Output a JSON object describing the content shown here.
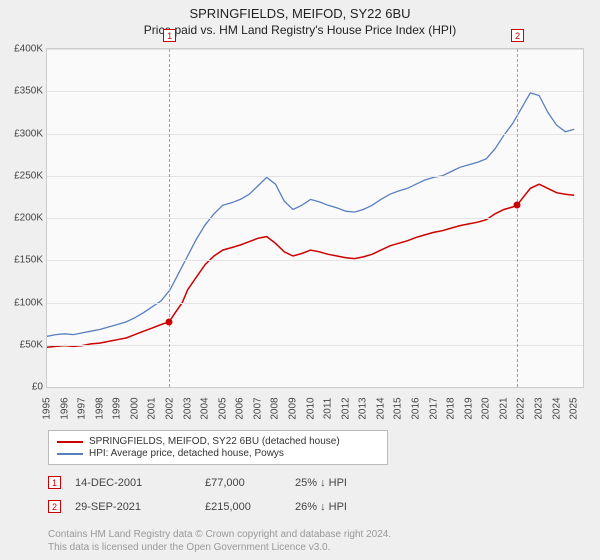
{
  "title": "SPRINGFIELDS, MEIFOD, SY22 6BU",
  "subtitle": "Price paid vs. HM Land Registry's House Price Index (HPI)",
  "chart": {
    "type": "line",
    "background_color": "#fafafa",
    "grid_color": "#e4e4e4",
    "axis_color": "#cccccc",
    "y": {
      "min": 0,
      "max": 400000,
      "step": 50000,
      "labels": [
        "£0",
        "£50K",
        "£100K",
        "£150K",
        "£200K",
        "£250K",
        "£300K",
        "£350K",
        "£400K"
      ]
    },
    "x": {
      "min": 1995,
      "max": 2025.5,
      "labels": [
        "1995",
        "1996",
        "1997",
        "1998",
        "1999",
        "2000",
        "2001",
        "2002",
        "2003",
        "2004",
        "2005",
        "2006",
        "2007",
        "2008",
        "2009",
        "2010",
        "2011",
        "2012",
        "2013",
        "2014",
        "2015",
        "2016",
        "2017",
        "2018",
        "2019",
        "2020",
        "2021",
        "2022",
        "2023",
        "2024",
        "2025"
      ]
    },
    "series": [
      {
        "name": "SPRINGFIELDS, MEIFOD, SY22 6BU (detached house)",
        "color": "#cc0000",
        "line_width": 1.5,
        "points": [
          [
            1995,
            47000
          ],
          [
            1995.5,
            48000
          ],
          [
            1996,
            49000
          ],
          [
            1996.5,
            48000
          ],
          [
            1997,
            49000
          ],
          [
            1997.5,
            51000
          ],
          [
            1998,
            52000
          ],
          [
            1998.5,
            54000
          ],
          [
            1999,
            56000
          ],
          [
            1999.5,
            58000
          ],
          [
            2000,
            62000
          ],
          [
            2000.5,
            66000
          ],
          [
            2001,
            70000
          ],
          [
            2001.5,
            74000
          ],
          [
            2001.95,
            77000
          ],
          [
            2002.3,
            88000
          ],
          [
            2002.7,
            100000
          ],
          [
            2003,
            115000
          ],
          [
            2003.5,
            130000
          ],
          [
            2004,
            145000
          ],
          [
            2004.5,
            155000
          ],
          [
            2005,
            162000
          ],
          [
            2005.5,
            165000
          ],
          [
            2006,
            168000
          ],
          [
            2006.5,
            172000
          ],
          [
            2007,
            176000
          ],
          [
            2007.5,
            178000
          ],
          [
            2008,
            170000
          ],
          [
            2008.5,
            160000
          ],
          [
            2009,
            155000
          ],
          [
            2009.5,
            158000
          ],
          [
            2010,
            162000
          ],
          [
            2010.5,
            160000
          ],
          [
            2011,
            157000
          ],
          [
            2011.5,
            155000
          ],
          [
            2012,
            153000
          ],
          [
            2012.5,
            152000
          ],
          [
            2013,
            154000
          ],
          [
            2013.5,
            157000
          ],
          [
            2014,
            162000
          ],
          [
            2014.5,
            167000
          ],
          [
            2015,
            170000
          ],
          [
            2015.5,
            173000
          ],
          [
            2016,
            177000
          ],
          [
            2016.5,
            180000
          ],
          [
            2017,
            183000
          ],
          [
            2017.5,
            185000
          ],
          [
            2018,
            188000
          ],
          [
            2018.5,
            191000
          ],
          [
            2019,
            193000
          ],
          [
            2019.5,
            195000
          ],
          [
            2020,
            198000
          ],
          [
            2020.5,
            205000
          ],
          [
            2021,
            210000
          ],
          [
            2021.5,
            213000
          ],
          [
            2021.75,
            215000
          ],
          [
            2022,
            222000
          ],
          [
            2022.5,
            235000
          ],
          [
            2023,
            240000
          ],
          [
            2023.5,
            235000
          ],
          [
            2024,
            230000
          ],
          [
            2024.5,
            228000
          ],
          [
            2025,
            227000
          ]
        ]
      },
      {
        "name": "HPI: Average price, detached house, Powys",
        "color": "#5a7fbf",
        "line_width": 1.3,
        "points": [
          [
            1995,
            60000
          ],
          [
            1995.5,
            62000
          ],
          [
            1996,
            63000
          ],
          [
            1996.5,
            62000
          ],
          [
            1997,
            64000
          ],
          [
            1997.5,
            66000
          ],
          [
            1998,
            68000
          ],
          [
            1998.5,
            71000
          ],
          [
            1999,
            74000
          ],
          [
            1999.5,
            77000
          ],
          [
            2000,
            82000
          ],
          [
            2000.5,
            88000
          ],
          [
            2001,
            95000
          ],
          [
            2001.5,
            102000
          ],
          [
            2002,
            115000
          ],
          [
            2002.5,
            135000
          ],
          [
            2003,
            155000
          ],
          [
            2003.5,
            175000
          ],
          [
            2004,
            192000
          ],
          [
            2004.5,
            205000
          ],
          [
            2005,
            215000
          ],
          [
            2005.5,
            218000
          ],
          [
            2006,
            222000
          ],
          [
            2006.5,
            228000
          ],
          [
            2007,
            238000
          ],
          [
            2007.5,
            248000
          ],
          [
            2008,
            240000
          ],
          [
            2008.5,
            220000
          ],
          [
            2009,
            210000
          ],
          [
            2009.5,
            215000
          ],
          [
            2010,
            222000
          ],
          [
            2010.5,
            219000
          ],
          [
            2011,
            215000
          ],
          [
            2011.5,
            212000
          ],
          [
            2012,
            208000
          ],
          [
            2012.5,
            207000
          ],
          [
            2013,
            210000
          ],
          [
            2013.5,
            215000
          ],
          [
            2014,
            222000
          ],
          [
            2014.5,
            228000
          ],
          [
            2015,
            232000
          ],
          [
            2015.5,
            235000
          ],
          [
            2016,
            240000
          ],
          [
            2016.5,
            245000
          ],
          [
            2017,
            248000
          ],
          [
            2017.5,
            250000
          ],
          [
            2018,
            255000
          ],
          [
            2018.5,
            260000
          ],
          [
            2019,
            263000
          ],
          [
            2019.5,
            266000
          ],
          [
            2020,
            270000
          ],
          [
            2020.5,
            282000
          ],
          [
            2021,
            298000
          ],
          [
            2021.5,
            312000
          ],
          [
            2022,
            330000
          ],
          [
            2022.5,
            348000
          ],
          [
            2023,
            345000
          ],
          [
            2023.5,
            325000
          ],
          [
            2024,
            310000
          ],
          [
            2024.5,
            302000
          ],
          [
            2025,
            305000
          ]
        ]
      }
    ],
    "markers": [
      {
        "id": "1",
        "year": 2001.95,
        "value": 77000
      },
      {
        "id": "2",
        "year": 2021.75,
        "value": 215000
      }
    ],
    "marker_color": "#cc0000",
    "marker_line_color": "#d88888"
  },
  "legend": {
    "rows": [
      {
        "color": "#cc0000",
        "label": "SPRINGFIELDS, MEIFOD, SY22 6BU (detached house)"
      },
      {
        "color": "#5a7fbf",
        "label": "HPI: Average price, detached house, Powys"
      }
    ]
  },
  "annotations": [
    {
      "id": "1",
      "date": "14-DEC-2001",
      "price": "£77,000",
      "delta": "25% ↓ HPI"
    },
    {
      "id": "2",
      "date": "29-SEP-2021",
      "price": "£215,000",
      "delta": "26% ↓ HPI"
    }
  ],
  "footer1": "Contains HM Land Registry data © Crown copyright and database right 2024.",
  "footer2": "This data is licensed under the Open Government Licence v3.0."
}
